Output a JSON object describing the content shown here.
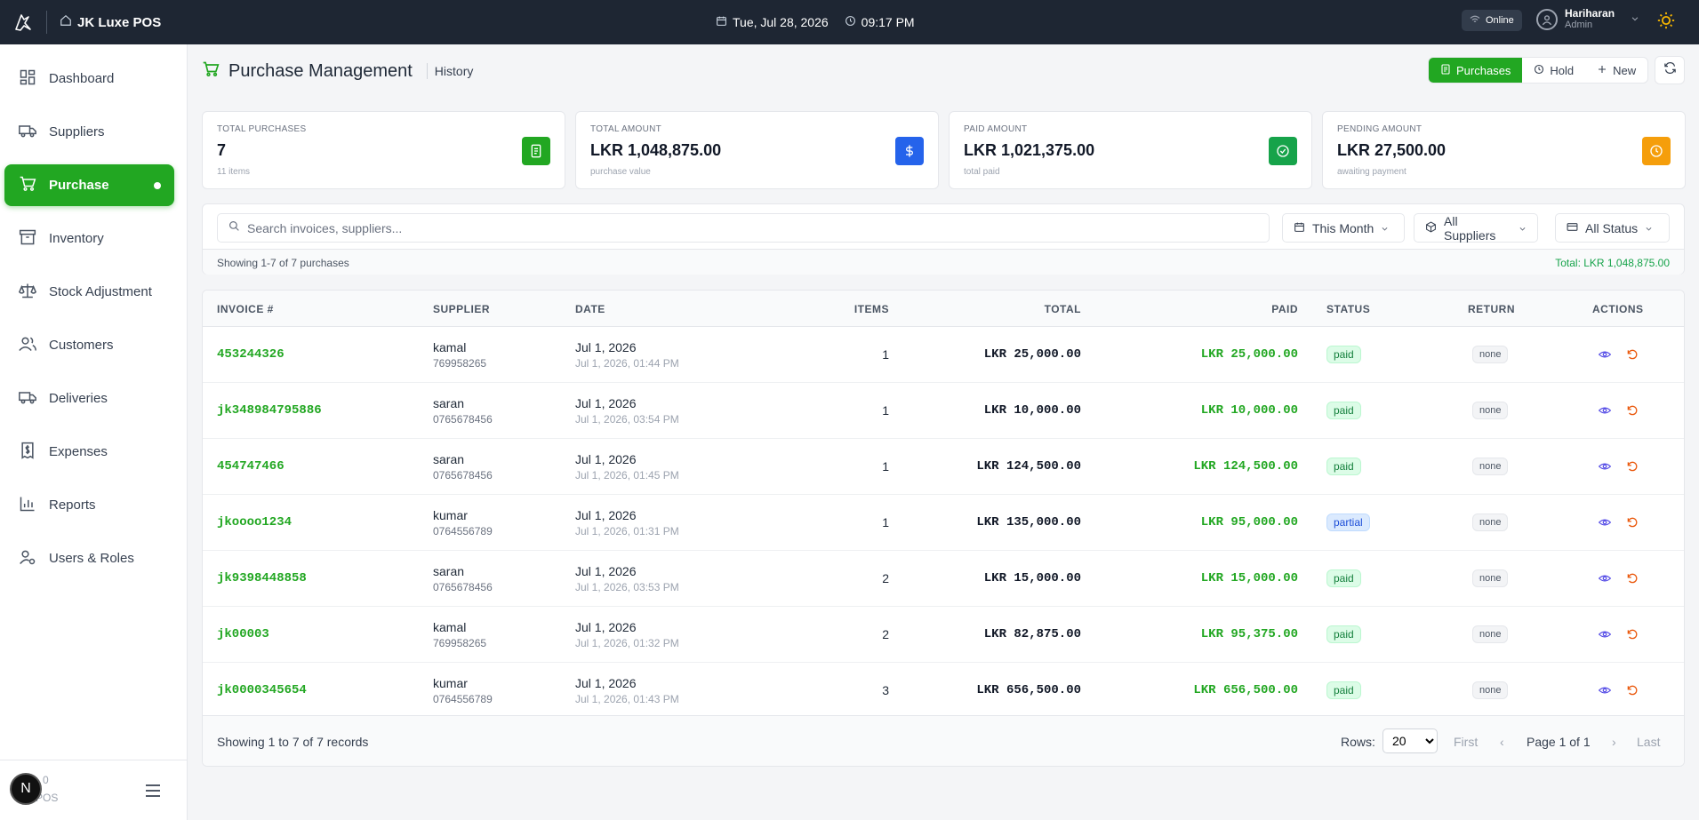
{
  "app": {
    "title": "JK Luxe POS"
  },
  "topbar": {
    "date": "Tue, Jul 28, 2026",
    "time": "09:17 PM",
    "status": "Online",
    "user_name": "Hariharan",
    "user_role": "Admin"
  },
  "sidebar": {
    "items": [
      {
        "label": "Dashboard",
        "icon": "dashboard-icon"
      },
      {
        "label": "Suppliers",
        "icon": "truck-icon"
      },
      {
        "label": "Purchase",
        "icon": "cart-icon",
        "active": true
      },
      {
        "label": "Inventory",
        "icon": "archive-icon"
      },
      {
        "label": "Stock Adjustment",
        "icon": "scale-icon"
      },
      {
        "label": "Customers",
        "icon": "users-icon"
      },
      {
        "label": "Deliveries",
        "icon": "truck-icon"
      },
      {
        "label": "Expenses",
        "icon": "receipt-icon"
      },
      {
        "label": "Reports",
        "icon": "bar-chart-icon"
      },
      {
        "label": "Users & Roles",
        "icon": "user-cog-icon"
      }
    ],
    "bottom": {
      "badge": "N",
      "version": "0",
      "app_label": "POS"
    }
  },
  "header": {
    "title": "Purchase Management",
    "subtitle": "History",
    "tabs": [
      "Purchases",
      "Hold",
      "New"
    ]
  },
  "stats": [
    {
      "label": "TOTAL PURCHASES",
      "value": "7",
      "sub": "11 items",
      "color": "#22a722",
      "icon": "document-icon"
    },
    {
      "label": "TOTAL AMOUNT",
      "value": "LKR 1,048,875.00",
      "sub": "purchase value",
      "color": "#2563eb",
      "icon": "dollar-icon"
    },
    {
      "label": "PAID AMOUNT",
      "value": "LKR 1,021,375.00",
      "sub": "total paid",
      "color": "#16a34a",
      "icon": "check-circle-icon"
    },
    {
      "label": "PENDING AMOUNT",
      "value": "LKR 27,500.00",
      "sub": "awaiting payment",
      "color": "#f59e0b",
      "icon": "clock-icon"
    }
  ],
  "filters": {
    "search_placeholder": "Search invoices, suppliers...",
    "date_filter": "This Month",
    "supplier_filter": "All Suppliers",
    "status_filter": "All Status",
    "showing": "Showing 1-7 of 7 purchases",
    "total": "Total: LKR 1,048,875.00"
  },
  "table": {
    "headers": [
      "INVOICE #",
      "SUPPLIER",
      "DATE",
      "ITEMS",
      "TOTAL",
      "PAID",
      "STATUS",
      "RETURN",
      "ACTIONS"
    ],
    "rows": [
      {
        "invoice": "453244326",
        "supplier": "kamal",
        "phone": "769958265",
        "date": "Jul 1, 2026",
        "datetime": "Jul 1, 2026, 01:44 PM",
        "items": "1",
        "total": "LKR 25,000.00",
        "paid": "LKR 25,000.00",
        "status": "paid",
        "return": "none"
      },
      {
        "invoice": "jk348984795886",
        "supplier": "saran",
        "phone": "0765678456",
        "date": "Jul 1, 2026",
        "datetime": "Jul 1, 2026, 03:54 PM",
        "items": "1",
        "total": "LKR 10,000.00",
        "paid": "LKR 10,000.00",
        "status": "paid",
        "return": "none"
      },
      {
        "invoice": "454747466",
        "supplier": "saran",
        "phone": "0765678456",
        "date": "Jul 1, 2026",
        "datetime": "Jul 1, 2026, 01:45 PM",
        "items": "1",
        "total": "LKR 124,500.00",
        "paid": "LKR 124,500.00",
        "status": "paid",
        "return": "none"
      },
      {
        "invoice": "jkoooo1234",
        "supplier": "kumar",
        "phone": "0764556789",
        "date": "Jul 1, 2026",
        "datetime": "Jul 1, 2026, 01:31 PM",
        "items": "1",
        "total": "LKR 135,000.00",
        "paid": "LKR 95,000.00",
        "status": "partial",
        "return": "none"
      },
      {
        "invoice": "jk9398448858",
        "supplier": "saran",
        "phone": "0765678456",
        "date": "Jul 1, 2026",
        "datetime": "Jul 1, 2026, 03:53 PM",
        "items": "2",
        "total": "LKR 15,000.00",
        "paid": "LKR 15,000.00",
        "status": "paid",
        "return": "none"
      },
      {
        "invoice": "jk00003",
        "supplier": "kamal",
        "phone": "769958265",
        "date": "Jul 1, 2026",
        "datetime": "Jul 1, 2026, 01:32 PM",
        "items": "2",
        "total": "LKR 82,875.00",
        "paid": "LKR 95,375.00",
        "status": "paid",
        "return": "none"
      },
      {
        "invoice": "jk0000345654",
        "supplier": "kumar",
        "phone": "0764556789",
        "date": "Jul 1, 2026",
        "datetime": "Jul 1, 2026, 01:43 PM",
        "items": "3",
        "total": "LKR 656,500.00",
        "paid": "LKR 656,500.00",
        "status": "paid",
        "return": "none"
      }
    ],
    "footer": {
      "info": "Showing 1 to 7 of 7 records",
      "rows_label": "Rows:",
      "rows_value": "20",
      "first": "First",
      "prev": "‹",
      "page": "Page 1 of 1",
      "next": "›",
      "last": "Last"
    }
  },
  "colors": {
    "accent": "#22a722",
    "topbar": "#1e2633"
  }
}
